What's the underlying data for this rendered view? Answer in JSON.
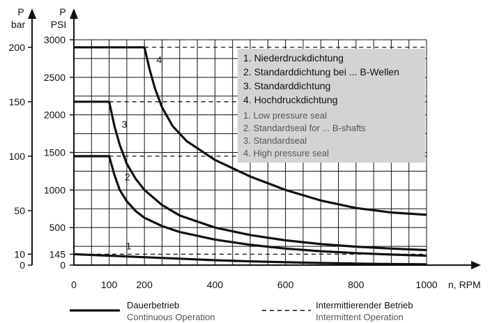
{
  "chart_data": {
    "type": "line",
    "title": "",
    "xlabel": "n, RPM",
    "ylabel_bar": "P\nbar",
    "ylabel_psi": "P\nPSI",
    "xlim": [
      0,
      1000
    ],
    "ylim_psi": [
      0,
      3000
    ],
    "x_ticks": [
      0,
      100,
      200,
      400,
      600,
      800,
      1000
    ],
    "x_tick_labels": [
      "0",
      "100",
      "200",
      "400",
      "600",
      "800",
      "1000"
    ],
    "psi_ticks": [
      0,
      145,
      500,
      1000,
      1500,
      2000,
      2500,
      3000
    ],
    "psi_tick_labels": [
      "0",
      "145",
      "500",
      "1000",
      "1500",
      "2000",
      "2500",
      "3000"
    ],
    "bar_ticks": [
      {
        "label": "0",
        "psi": 0
      },
      {
        "label": "10",
        "psi": 145
      },
      {
        "label": "50",
        "psi": 725
      },
      {
        "label": "100",
        "psi": 1450
      },
      {
        "label": "150",
        "psi": 2175
      },
      {
        "label": "200",
        "psi": 2900
      }
    ],
    "grid": true,
    "series": [
      {
        "label": "1",
        "continuous": [
          [
            0,
            145
          ],
          [
            100,
            125
          ],
          [
            200,
            105
          ],
          [
            300,
            85
          ],
          [
            400,
            65
          ],
          [
            500,
            50
          ],
          [
            600,
            38
          ],
          [
            700,
            28
          ],
          [
            800,
            20
          ],
          [
            900,
            14
          ],
          [
            1000,
            10
          ]
        ],
        "intermittent_psi": 145,
        "intermittent_from": 0
      },
      {
        "label": "2",
        "continuous": [
          [
            0,
            1450
          ],
          [
            100,
            1450
          ],
          [
            115,
            1200
          ],
          [
            130,
            1000
          ],
          [
            150,
            850
          ],
          [
            175,
            720
          ],
          [
            200,
            630
          ],
          [
            250,
            520
          ],
          [
            300,
            440
          ],
          [
            400,
            340
          ],
          [
            500,
            270
          ],
          [
            600,
            220
          ],
          [
            700,
            185
          ],
          [
            800,
            160
          ],
          [
            900,
            140
          ],
          [
            1000,
            125
          ]
        ],
        "intermittent_psi": 1450,
        "intermittent_from": 100
      },
      {
        "label": "3",
        "continuous": [
          [
            0,
            2175
          ],
          [
            100,
            2175
          ],
          [
            115,
            1850
          ],
          [
            130,
            1600
          ],
          [
            150,
            1350
          ],
          [
            175,
            1150
          ],
          [
            200,
            1000
          ],
          [
            250,
            800
          ],
          [
            300,
            660
          ],
          [
            400,
            500
          ],
          [
            500,
            400
          ],
          [
            600,
            330
          ],
          [
            700,
            280
          ],
          [
            800,
            245
          ],
          [
            900,
            220
          ],
          [
            1000,
            200
          ]
        ],
        "intermittent_psi": 2175,
        "intermittent_from": 100
      },
      {
        "label": "4",
        "continuous": [
          [
            0,
            2900
          ],
          [
            200,
            2900
          ],
          [
            215,
            2600
          ],
          [
            230,
            2350
          ],
          [
            250,
            2100
          ],
          [
            280,
            1850
          ],
          [
            320,
            1650
          ],
          [
            400,
            1400
          ],
          [
            500,
            1180
          ],
          [
            600,
            1000
          ],
          [
            700,
            860
          ],
          [
            800,
            760
          ],
          [
            900,
            700
          ],
          [
            1000,
            670
          ]
        ],
        "intermittent_psi": 2900,
        "intermittent_from": 200
      }
    ],
    "series_label_positions": [
      {
        "label": "1",
        "x": 155,
        "psi": 210
      },
      {
        "label": "2",
        "x": 152,
        "psi": 1130
      },
      {
        "label": "3",
        "x": 143,
        "psi": 1830
      },
      {
        "label": "4",
        "x": 242,
        "psi": 2690
      }
    ],
    "legend_box": {
      "de": [
        "1. Niederdruckdichtung",
        "2. Standarddichtung bei ... B-Wellen",
        "3. Standarddichtung",
        "4. Hochdruckdichtung"
      ],
      "en": [
        "1. Low pressure seal",
        "2. Standardseal for ... B-shafts",
        "3. Standardseal",
        "4. High pressure seal"
      ]
    },
    "line_key": {
      "continuous_de": "Dauerbetrieb",
      "continuous_en": "Continuous Operation",
      "intermittent_de": "Intermittierender Betrieb",
      "intermittent_en": "Intermittent Operation"
    }
  }
}
